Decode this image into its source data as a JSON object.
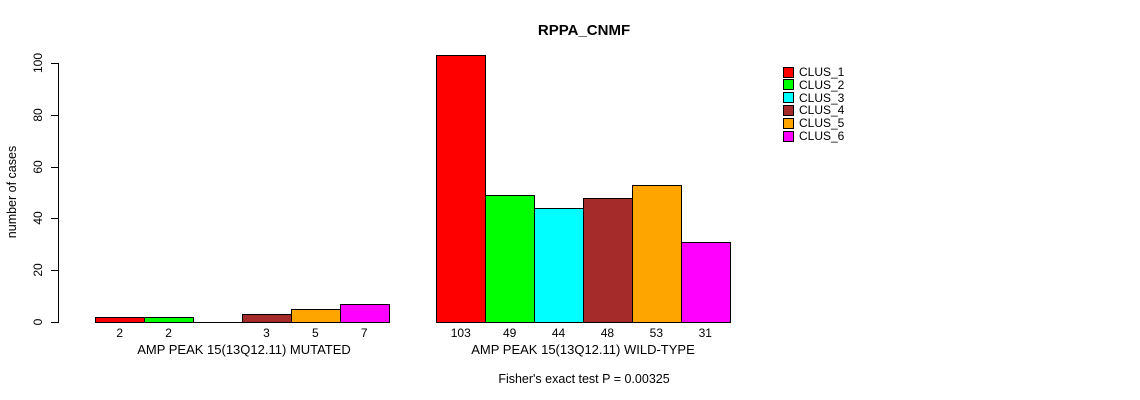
{
  "chart_data": {
    "type": "bar",
    "title": "RPPA_CNMF",
    "ylabel": "number of cases",
    "footer": "Fisher's exact test P = 0.00325",
    "ylim": [
      0,
      100
    ],
    "yticks": [
      0,
      20,
      40,
      60,
      80,
      100
    ],
    "grid": false,
    "legend_position": "right",
    "legend": [
      {
        "label": "CLUS_1",
        "color": "#FF0000"
      },
      {
        "label": "CLUS_2",
        "color": "#00FF00"
      },
      {
        "label": "CLUS_3",
        "color": "#00FFFF"
      },
      {
        "label": "CLUS_4",
        "color": "#A52A2A"
      },
      {
        "label": "CLUS_5",
        "color": "#FFA500"
      },
      {
        "label": "CLUS_6",
        "color": "#FF00FF"
      }
    ],
    "groups": [
      {
        "label": "AMP PEAK 15(13Q12.11) MUTATED",
        "series": [
          "CLUS_1",
          "CLUS_2",
          "CLUS_3",
          "CLUS_4",
          "CLUS_5",
          "CLUS_6"
        ],
        "values": [
          2,
          2,
          0,
          3,
          5,
          7
        ],
        "bar_labels": [
          "2",
          "2",
          "",
          "3",
          "5",
          "7"
        ]
      },
      {
        "label": "AMP PEAK 15(13Q12.11) WILD-TYPE",
        "series": [
          "CLUS_1",
          "CLUS_2",
          "CLUS_3",
          "CLUS_4",
          "CLUS_5",
          "CLUS_6"
        ],
        "values": [
          103,
          49,
          44,
          48,
          53,
          31
        ],
        "bar_labels": [
          "103",
          "49",
          "44",
          "48",
          "53",
          "31"
        ]
      }
    ]
  }
}
